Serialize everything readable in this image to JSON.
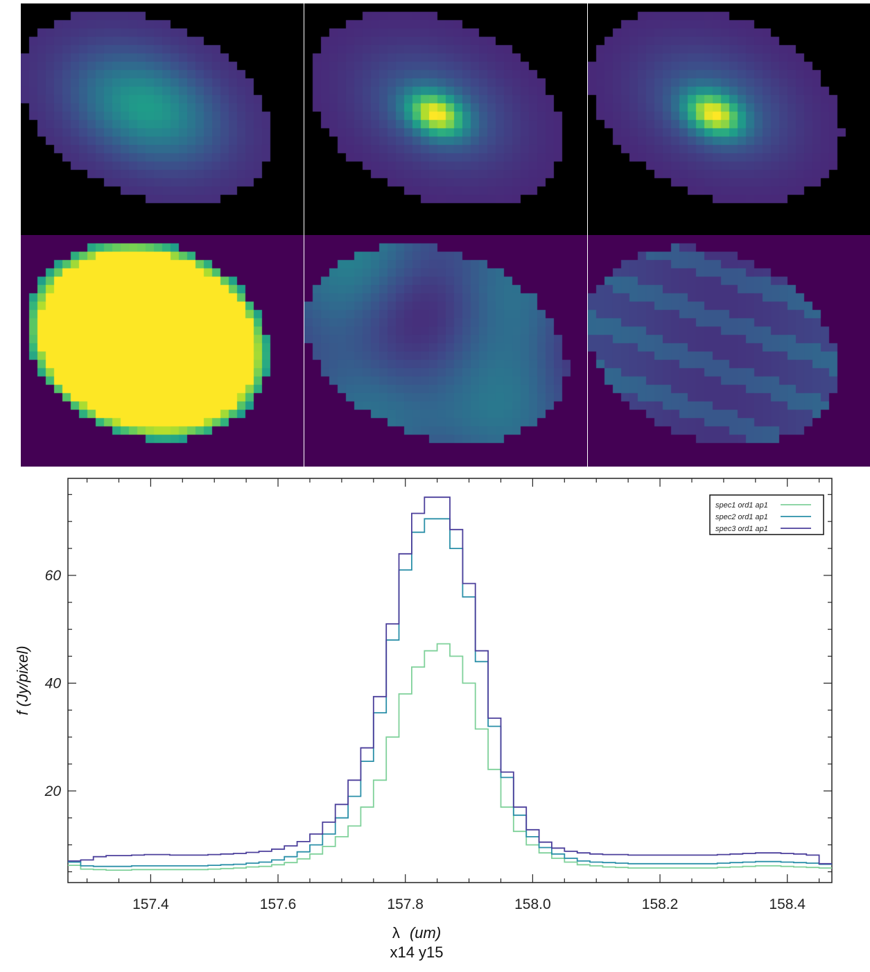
{
  "image_panels": [
    {
      "name": "panel-1",
      "kind": "broad",
      "background": "#000000"
    },
    {
      "name": "panel-2",
      "kind": "peaked",
      "background": "#000000"
    },
    {
      "name": "panel-3",
      "kind": "peaked",
      "background": "#000000"
    },
    {
      "name": "panel-4",
      "kind": "saturated",
      "background": "#440154"
    },
    {
      "name": "panel-5",
      "kind": "mottled",
      "background": "#440154"
    },
    {
      "name": "panel-6",
      "kind": "striped",
      "background": "#440154"
    }
  ],
  "chart_data": {
    "type": "line",
    "step": true,
    "xlabel_symbol": "λ",
    "xlabel_unit": "(um)",
    "ylabel": "f (Jy/pixel)",
    "footer": "x14 y15",
    "xlim": [
      157.27,
      158.47
    ],
    "ylim": [
      3,
      78
    ],
    "xticks": [
      157.4,
      157.6,
      157.8,
      158.0,
      158.2,
      158.4
    ],
    "xtick_labels": [
      "157.4",
      "157.6",
      "157.8",
      "158.0",
      "158.2",
      "158.4"
    ],
    "yticks": [
      20,
      40,
      60
    ],
    "ytick_labels": [
      "20",
      "40",
      "60"
    ],
    "legend_position": "top-right",
    "x": [
      157.28,
      157.3,
      157.32,
      157.34,
      157.36,
      157.38,
      157.4,
      157.42,
      157.44,
      157.46,
      157.48,
      157.5,
      157.52,
      157.54,
      157.56,
      157.58,
      157.6,
      157.62,
      157.64,
      157.66,
      157.68,
      157.7,
      157.72,
      157.74,
      157.76,
      157.78,
      157.8,
      157.82,
      157.84,
      157.86,
      157.88,
      157.9,
      157.92,
      157.94,
      157.96,
      157.98,
      158.0,
      158.02,
      158.04,
      158.06,
      158.08,
      158.1,
      158.12,
      158.14,
      158.16,
      158.18,
      158.2,
      158.22,
      158.24,
      158.26,
      158.28,
      158.3,
      158.32,
      158.34,
      158.36,
      158.38,
      158.4,
      158.42,
      158.44,
      158.46
    ],
    "series": [
      {
        "name": "spec1 ord1 ap1",
        "color": "#7fd19a",
        "values": [
          6.2,
          5.5,
          5.4,
          5.3,
          5.3,
          5.4,
          5.4,
          5.4,
          5.4,
          5.4,
          5.4,
          5.5,
          5.6,
          5.7,
          5.9,
          6.0,
          6.3,
          6.7,
          7.4,
          8.3,
          9.7,
          11.5,
          13.5,
          17.0,
          22.0,
          30.0,
          38.0,
          43.0,
          46.0,
          47.3,
          45.0,
          40.0,
          31.5,
          24.0,
          17.0,
          12.5,
          10.0,
          8.5,
          7.5,
          6.8,
          6.3,
          6.1,
          5.9,
          5.8,
          5.7,
          5.7,
          5.7,
          5.7,
          5.7,
          5.7,
          5.7,
          5.8,
          5.9,
          6.0,
          6.1,
          6.1,
          6.0,
          5.9,
          5.8,
          5.7
        ]
      },
      {
        "name": "spec2 ord1 ap1",
        "color": "#2a8fa8",
        "values": [
          6.8,
          6.1,
          6.0,
          6.0,
          6.0,
          6.1,
          6.1,
          6.1,
          6.1,
          6.1,
          6.1,
          6.2,
          6.3,
          6.4,
          6.6,
          6.8,
          7.2,
          7.8,
          8.7,
          10.0,
          12.0,
          15.0,
          19.0,
          25.5,
          34.5,
          48.0,
          61.0,
          68.0,
          70.5,
          70.5,
          65.0,
          56.0,
          44.0,
          32.0,
          22.5,
          15.5,
          11.5,
          9.5,
          8.3,
          7.5,
          7.0,
          6.8,
          6.7,
          6.6,
          6.5,
          6.5,
          6.5,
          6.5,
          6.5,
          6.5,
          6.5,
          6.6,
          6.7,
          6.8,
          6.9,
          6.9,
          6.8,
          6.7,
          6.6,
          6.4
        ]
      },
      {
        "name": "spec3 ord1 ap1",
        "color": "#4b3f9b",
        "values": [
          7.0,
          7.2,
          7.8,
          8.0,
          8.0,
          8.1,
          8.2,
          8.2,
          8.1,
          8.1,
          8.1,
          8.2,
          8.3,
          8.4,
          8.6,
          8.8,
          9.2,
          9.8,
          10.6,
          12.0,
          14.2,
          17.5,
          22.0,
          28.0,
          37.5,
          51.0,
          64.0,
          71.5,
          74.5,
          74.5,
          68.5,
          58.5,
          46.0,
          33.5,
          23.5,
          17.0,
          12.8,
          10.5,
          9.4,
          8.8,
          8.5,
          8.3,
          8.2,
          8.2,
          8.1,
          8.1,
          8.1,
          8.1,
          8.1,
          8.1,
          8.1,
          8.2,
          8.3,
          8.4,
          8.5,
          8.5,
          8.4,
          8.3,
          8.1,
          6.5
        ]
      }
    ]
  }
}
